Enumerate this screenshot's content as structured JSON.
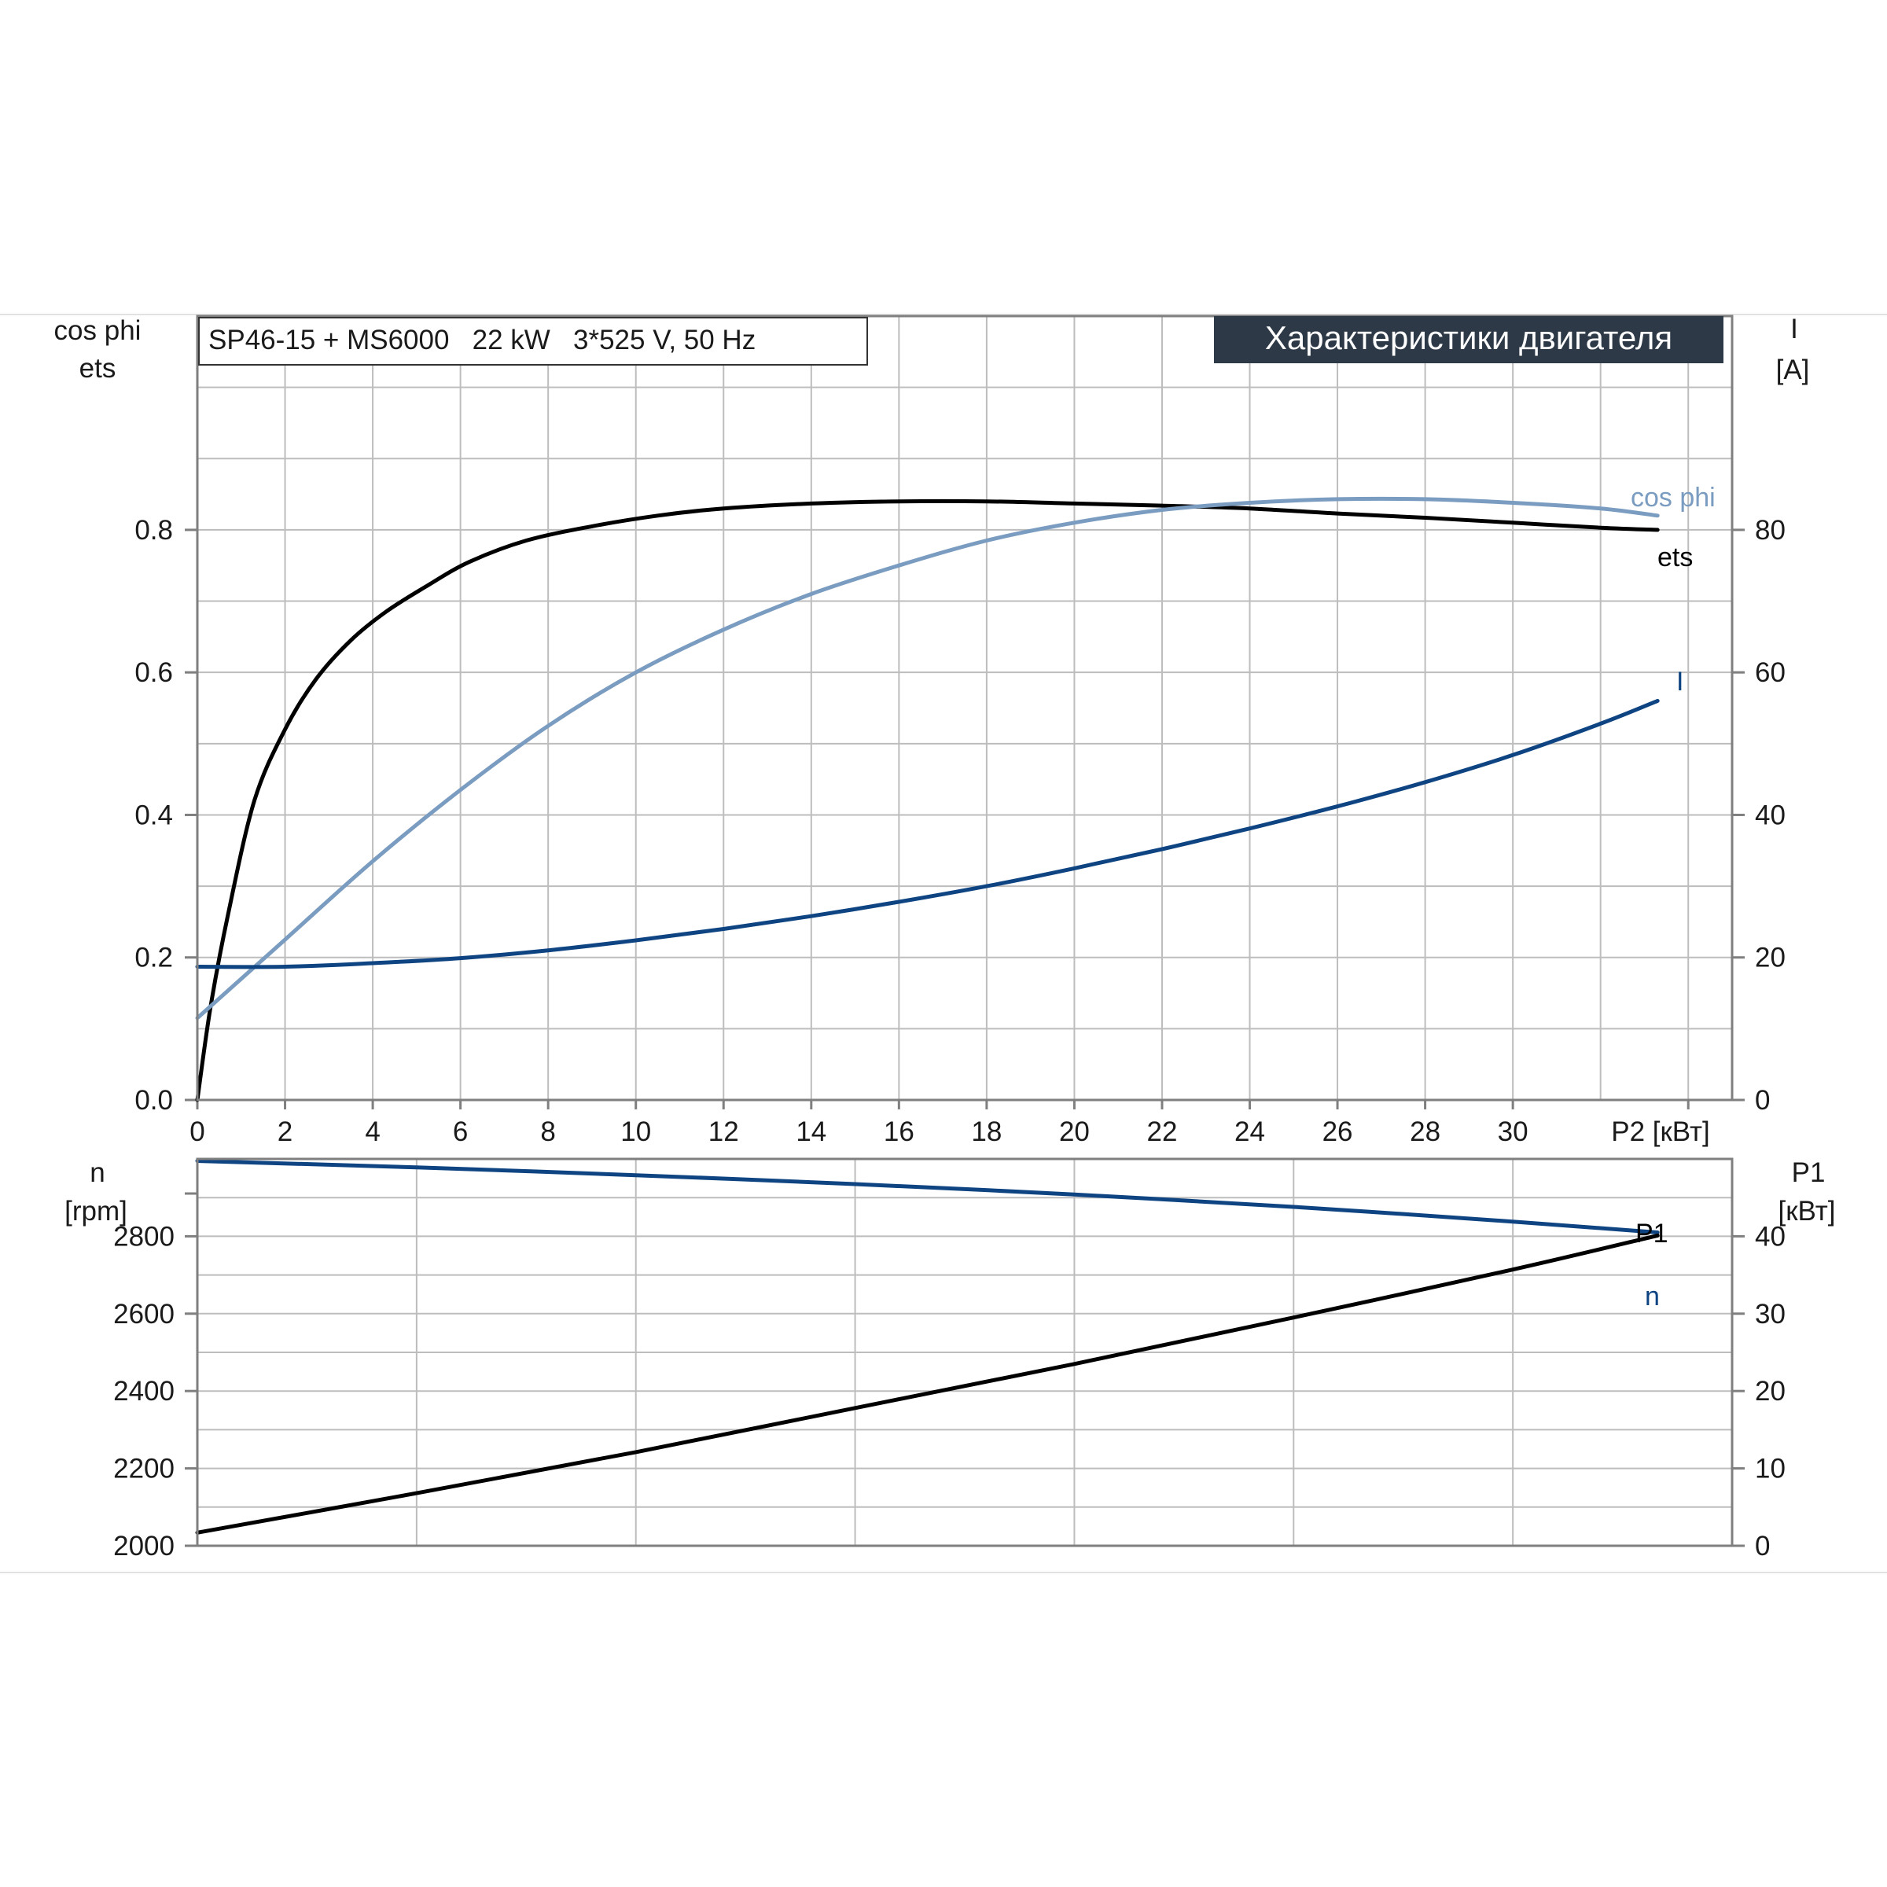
{
  "chart_data": [
    {
      "type": "line",
      "title": "Характеристики двигателя",
      "subtitle": "SP46-15 + MS6000   22 kW   3*525 V, 50 Hz",
      "xlabel": "P2 [кВт]",
      "ylabel_left": [
        "cos phi",
        "ets"
      ],
      "ylabel_right": [
        "I",
        "[A]"
      ],
      "xlim": [
        0,
        35
      ],
      "ylim_left": [
        0,
        1.1
      ],
      "ylim_right": [
        0,
        110
      ],
      "x_ticks": [
        "0",
        "2",
        "4",
        "6",
        "8",
        "10",
        "12",
        "14",
        "16",
        "18",
        "20",
        "22",
        "24",
        "26",
        "28",
        "30"
      ],
      "y_ticks_left": [
        "0.0",
        "0.2",
        "0.4",
        "0.6",
        "0.8"
      ],
      "y_ticks_right": [
        "0",
        "20",
        "40",
        "60",
        "80"
      ],
      "grid": true,
      "colors": {
        "ets": "#000000",
        "cos phi": "#7a9cc0",
        "I": "#0f4482"
      },
      "series": [
        {
          "name": "ets",
          "axis": "left",
          "x": [
            0,
            0.3,
            0.7,
            1.3,
            2.0,
            2.7,
            3.5,
            4.3,
            5.2,
            6.2,
            7.5,
            9,
            10.5,
            12,
            14,
            16,
            18,
            20,
            22,
            24,
            26,
            28,
            30,
            32,
            33.3
          ],
          "y": [
            0,
            0.13,
            0.26,
            0.42,
            0.52,
            0.59,
            0.645,
            0.685,
            0.72,
            0.755,
            0.785,
            0.805,
            0.82,
            0.83,
            0.837,
            0.84,
            0.84,
            0.837,
            0.834,
            0.83,
            0.823,
            0.817,
            0.81,
            0.803,
            0.8
          ]
        },
        {
          "name": "cos phi",
          "axis": "left",
          "x": [
            0,
            2,
            4,
            6,
            8,
            10,
            12,
            14,
            16,
            18,
            20,
            22,
            24,
            26,
            28,
            30,
            32,
            33.3
          ],
          "y": [
            0.115,
            0.225,
            0.335,
            0.435,
            0.525,
            0.6,
            0.66,
            0.71,
            0.75,
            0.785,
            0.81,
            0.828,
            0.838,
            0.843,
            0.843,
            0.838,
            0.83,
            0.82
          ]
        },
        {
          "name": "I",
          "axis": "right",
          "x": [
            0,
            2,
            4,
            6,
            8,
            10,
            12,
            14,
            16,
            18,
            20,
            22,
            24,
            26,
            28,
            30,
            32,
            33.3
          ],
          "y": [
            18.7,
            18.7,
            19.2,
            19.9,
            21,
            22.4,
            24,
            25.8,
            27.8,
            30,
            32.5,
            35.2,
            38.1,
            41.2,
            44.6,
            48.4,
            52.8,
            56
          ]
        }
      ]
    },
    {
      "type": "line",
      "xlabel": "",
      "ylabel_left": [
        "n",
        "[rpm]"
      ],
      "ylabel_right": [
        "P1",
        "[кВт]"
      ],
      "xlim": [
        0,
        35
      ],
      "ylim_left": [
        2000,
        3000
      ],
      "ylim_right": [
        0,
        50
      ],
      "y_ticks_left": [
        "2000",
        "2200",
        "2400",
        "2600",
        "2800"
      ],
      "y_ticks_right": [
        "0",
        "10",
        "20",
        "30",
        "40"
      ],
      "grid": true,
      "colors": {
        "n": "#0f4482",
        "P1": "#000000"
      },
      "series": [
        {
          "name": "n",
          "axis": "left",
          "x": [
            0,
            5,
            10,
            15,
            20,
            25,
            30,
            33.3
          ],
          "y": [
            2995,
            2978,
            2958,
            2935,
            2908,
            2876,
            2838,
            2810
          ]
        },
        {
          "name": "P1",
          "axis": "right",
          "x": [
            0,
            5,
            10,
            15,
            20,
            25,
            30,
            33.3
          ],
          "y": [
            1.7,
            6.8,
            12.1,
            17.8,
            23.5,
            29.5,
            35.7,
            40.1
          ]
        }
      ]
    }
  ]
}
